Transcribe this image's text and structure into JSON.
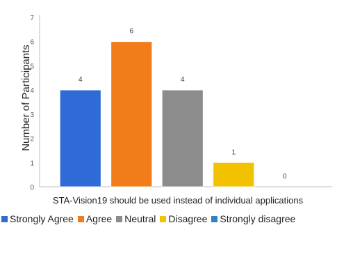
{
  "chart_data": {
    "type": "bar",
    "categories": [
      "Strongly Agree",
      "Agree",
      "Neutral",
      "Disagree",
      "Strongly disagree"
    ],
    "values": [
      4,
      6,
      4,
      1,
      0
    ],
    "data_labels": [
      "4",
      "6",
      "4",
      "1",
      "0"
    ],
    "colors": [
      "#2f6bd6",
      "#f07d1a",
      "#8c8c8c",
      "#f2c200",
      "#2e80c9"
    ],
    "xlabel": "STA-Vision19 should be used instead of  individual applications",
    "ylabel": "Number of Participants",
    "ylim": [
      0,
      7
    ],
    "yticks": [
      "0",
      "1",
      "2",
      "3",
      "4",
      "5",
      "6",
      "7"
    ],
    "grid": false,
    "legend_position": "bottom"
  }
}
